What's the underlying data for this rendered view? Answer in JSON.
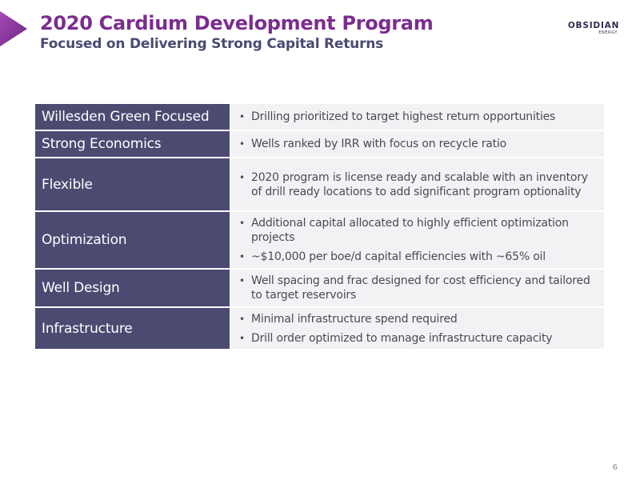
{
  "header": {
    "title": "2020 Cardium Development Program",
    "subtitle": "Focused on Delivering Strong Capital Returns"
  },
  "logo": {
    "name": "OBSIDIAN",
    "sub": "ENERGY"
  },
  "table": {
    "rows": [
      {
        "label": "Willesden Green Focused",
        "bullets": [
          "Drilling prioritized to target highest return opportunities"
        ]
      },
      {
        "label": "Strong Economics",
        "bullets": [
          "Wells ranked by IRR with focus on recycle ratio"
        ]
      },
      {
        "label": "Flexible",
        "bullets": [
          "2020 program is license ready and scalable with an inventory of drill ready locations to add significant program optionality"
        ]
      },
      {
        "label": "Optimization",
        "bullets": [
          "Additional capital allocated to highly efficient optimization projects",
          "~$10,000 per boe/d capital efficiencies with ~65% oil"
        ]
      },
      {
        "label": "Well Design",
        "bullets": [
          "Well spacing and frac designed for cost efficiency and tailored to target reservoirs"
        ]
      },
      {
        "label": "Infrastructure",
        "bullets": [
          "Minimal infrastructure spend required",
          "Drill order optimized to manage infrastructure capacity"
        ]
      }
    ]
  },
  "footer": {
    "page_number": "6"
  },
  "colors": {
    "title": "#7b2d8e",
    "subtitle": "#4a4a72",
    "label_bg": "#4b4b72",
    "content_bg": "#f2f2f4",
    "accent_tab": "#8b3a9e"
  }
}
